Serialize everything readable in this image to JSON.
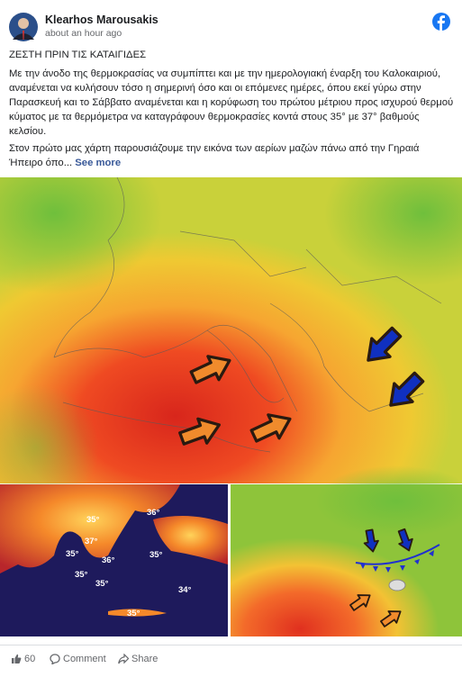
{
  "post": {
    "author": "Klearhos Marousakis",
    "time": "about an hour ago",
    "title": "ΖΕΣΤΗ ΠΡΙΝ ΤΙΣ ΚΑΤΑΙΓΙΔΕΣ",
    "paragraphs": [
      "Με την άνοδο της θερμοκρασίας να συμπίπτει και με την ημερολογιακή έναρξη του Καλοκαιριού, αναμένεται να κυλήσουν τόσο η σημερινή όσο και οι επόμενες ημέρες, όπου εκεί γύρω στην Παρασκευή και το Σάββατο αναμένεται και η κορύφωση του πρώτου μέτριου προς ισχυρού θερμού κύματος με τα θερμόμετρα να καταγράφουν θερμοκρασίες κοντά στους 35° με 37° βαθμούς κελσίου.",
      "Στον πρώτο μας χάρτη παρουσιάζουμε την εικόνα των αερίων μαζών πάνω από την Γηραιά Ήπειρο όπο..."
    ],
    "see_more": "See more"
  },
  "map_labels": [
    "36°",
    "35°",
    "37°",
    "35°",
    "36°",
    "35°",
    "35°",
    "35°",
    "34°",
    "35°"
  ],
  "footer": {
    "likes": 60,
    "comment": "Comment",
    "share": "Share"
  }
}
